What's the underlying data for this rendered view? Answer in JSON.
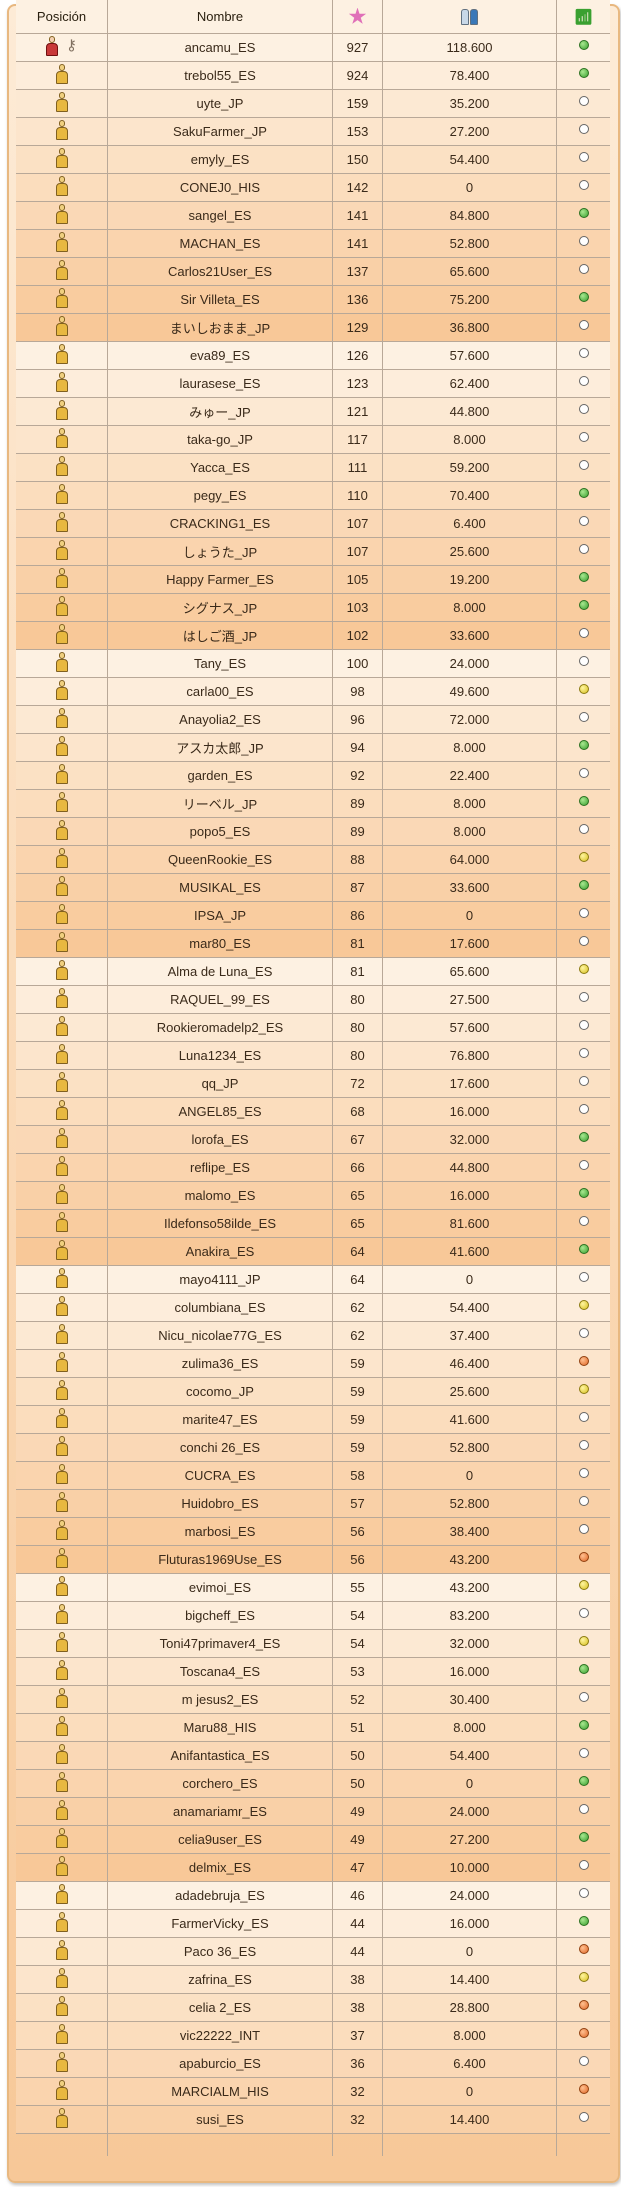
{
  "header": {
    "position": "Posición",
    "name": "Nombre",
    "star_icon": "star-icon",
    "neighbors_icon": "neighbors-icon",
    "online_icon": "wifi-icon"
  },
  "colors": {
    "green": "#3aa030",
    "yellow": "#d8c020",
    "orange": "#e06828",
    "none": "#ffffff"
  },
  "rows": [
    {
      "name": "ancamu_ES",
      "level": "927",
      "value": "118.600",
      "status": "green",
      "owner": true
    },
    {
      "name": "trebol55_ES",
      "level": "924",
      "value": "78.400",
      "status": "green"
    },
    {
      "name": "uyte_JP",
      "level": "159",
      "value": "35.200",
      "status": "none"
    },
    {
      "name": "SakuFarmer_JP",
      "level": "153",
      "value": "27.200",
      "status": "none"
    },
    {
      "name": "emyly_ES",
      "level": "150",
      "value": "54.400",
      "status": "none"
    },
    {
      "name": "CONEJ0_HIS",
      "level": "142",
      "value": "0",
      "status": "none"
    },
    {
      "name": "sangel_ES",
      "level": "141",
      "value": "84.800",
      "status": "green"
    },
    {
      "name": "MACHAN_ES",
      "level": "141",
      "value": "52.800",
      "status": "none"
    },
    {
      "name": "Carlos21User_ES",
      "level": "137",
      "value": "65.600",
      "status": "none"
    },
    {
      "name": "Sir Villeta_ES",
      "level": "136",
      "value": "75.200",
      "status": "green"
    },
    {
      "name": "まいしおまま_JP",
      "level": "129",
      "value": "36.800",
      "status": "none"
    },
    {
      "name": "eva89_ES",
      "level": "126",
      "value": "57.600",
      "status": "none"
    },
    {
      "name": "laurasese_ES",
      "level": "123",
      "value": "62.400",
      "status": "none"
    },
    {
      "name": "みゅー_JP",
      "level": "121",
      "value": "44.800",
      "status": "none"
    },
    {
      "name": "taka-go_JP",
      "level": "117",
      "value": "8.000",
      "status": "none"
    },
    {
      "name": "Yacca_ES",
      "level": "111",
      "value": "59.200",
      "status": "none"
    },
    {
      "name": "pegy_ES",
      "level": "110",
      "value": "70.400",
      "status": "green"
    },
    {
      "name": "CRACKING1_ES",
      "level": "107",
      "value": "6.400",
      "status": "none"
    },
    {
      "name": "しょうた_JP",
      "level": "107",
      "value": "25.600",
      "status": "none"
    },
    {
      "name": "Happy Farmer_ES",
      "level": "105",
      "value": "19.200",
      "status": "green"
    },
    {
      "name": "シグナス_JP",
      "level": "103",
      "value": "8.000",
      "status": "green"
    },
    {
      "name": "はしご酒_JP",
      "level": "102",
      "value": "33.600",
      "status": "none"
    },
    {
      "name": "Tany_ES",
      "level": "100",
      "value": "24.000",
      "status": "none"
    },
    {
      "name": "carla00_ES",
      "level": "98",
      "value": "49.600",
      "status": "yellow"
    },
    {
      "name": "Anayolia2_ES",
      "level": "96",
      "value": "72.000",
      "status": "none"
    },
    {
      "name": "アスカ太郎_JP",
      "level": "94",
      "value": "8.000",
      "status": "green"
    },
    {
      "name": "garden_ES",
      "level": "92",
      "value": "22.400",
      "status": "none"
    },
    {
      "name": "リーベル_JP",
      "level": "89",
      "value": "8.000",
      "status": "green"
    },
    {
      "name": "popo5_ES",
      "level": "89",
      "value": "8.000",
      "status": "none"
    },
    {
      "name": "QueenRookie_ES",
      "level": "88",
      "value": "64.000",
      "status": "yellow"
    },
    {
      "name": "MUSIKAL_ES",
      "level": "87",
      "value": "33.600",
      "status": "green"
    },
    {
      "name": "IPSA_JP",
      "level": "86",
      "value": "0",
      "status": "none"
    },
    {
      "name": "mar80_ES",
      "level": "81",
      "value": "17.600",
      "status": "none"
    },
    {
      "name": "Alma de Luna_ES",
      "level": "81",
      "value": "65.600",
      "status": "yellow"
    },
    {
      "name": "RAQUEL_99_ES",
      "level": "80",
      "value": "27.500",
      "status": "none"
    },
    {
      "name": "Rookieromadelp2_ES",
      "level": "80",
      "value": "57.600",
      "status": "none"
    },
    {
      "name": "Luna1234_ES",
      "level": "80",
      "value": "76.800",
      "status": "none"
    },
    {
      "name": "qq_JP",
      "level": "72",
      "value": "17.600",
      "status": "none"
    },
    {
      "name": "ANGEL85_ES",
      "level": "68",
      "value": "16.000",
      "status": "none"
    },
    {
      "name": "lorofa_ES",
      "level": "67",
      "value": "32.000",
      "status": "green"
    },
    {
      "name": "reflipe_ES",
      "level": "66",
      "value": "44.800",
      "status": "none"
    },
    {
      "name": "malomo_ES",
      "level": "65",
      "value": "16.000",
      "status": "green"
    },
    {
      "name": "Ildefonso58ilde_ES",
      "level": "65",
      "value": "81.600",
      "status": "none"
    },
    {
      "name": "Anakira_ES",
      "level": "64",
      "value": "41.600",
      "status": "green"
    },
    {
      "name": "mayo4111_JP",
      "level": "64",
      "value": "0",
      "status": "none"
    },
    {
      "name": "columbiana_ES",
      "level": "62",
      "value": "54.400",
      "status": "yellow"
    },
    {
      "name": "Nicu_nicolae77G_ES",
      "level": "62",
      "value": "37.400",
      "status": "none"
    },
    {
      "name": "zulima36_ES",
      "level": "59",
      "value": "46.400",
      "status": "orange"
    },
    {
      "name": "cocomo_JP",
      "level": "59",
      "value": "25.600",
      "status": "yellow"
    },
    {
      "name": "marite47_ES",
      "level": "59",
      "value": "41.600",
      "status": "none"
    },
    {
      "name": "conchi 26_ES",
      "level": "59",
      "value": "52.800",
      "status": "none"
    },
    {
      "name": "CUCRA_ES",
      "level": "58",
      "value": "0",
      "status": "none"
    },
    {
      "name": "Huidobro_ES",
      "level": "57",
      "value": "52.800",
      "status": "none"
    },
    {
      "name": "marbosi_ES",
      "level": "56",
      "value": "38.400",
      "status": "none"
    },
    {
      "name": "Fluturas1969Use_ES",
      "level": "56",
      "value": "43.200",
      "status": "orange"
    },
    {
      "name": "evimoi_ES",
      "level": "55",
      "value": "43.200",
      "status": "yellow"
    },
    {
      "name": "bigcheff_ES",
      "level": "54",
      "value": "83.200",
      "status": "none"
    },
    {
      "name": "Toni47primaver4_ES",
      "level": "54",
      "value": "32.000",
      "status": "yellow"
    },
    {
      "name": "Toscana4_ES",
      "level": "53",
      "value": "16.000",
      "status": "green"
    },
    {
      "name": "m jesus2_ES",
      "level": "52",
      "value": "30.400",
      "status": "none"
    },
    {
      "name": "Maru88_HIS",
      "level": "51",
      "value": "8.000",
      "status": "green"
    },
    {
      "name": "Anifantastica_ES",
      "level": "50",
      "value": "54.400",
      "status": "none"
    },
    {
      "name": "corchero_ES",
      "level": "50",
      "value": "0",
      "status": "green"
    },
    {
      "name": "anamariamr_ES",
      "level": "49",
      "value": "24.000",
      "status": "none"
    },
    {
      "name": "celia9user_ES",
      "level": "49",
      "value": "27.200",
      "status": "green"
    },
    {
      "name": "delmix_ES",
      "level": "47",
      "value": "10.000",
      "status": "none"
    },
    {
      "name": "adadebruja_ES",
      "level": "46",
      "value": "24.000",
      "status": "none"
    },
    {
      "name": "FarmerVicky_ES",
      "level": "44",
      "value": "16.000",
      "status": "green"
    },
    {
      "name": "Paco 36_ES",
      "level": "44",
      "value": "0",
      "status": "orange"
    },
    {
      "name": "zafrina_ES",
      "level": "38",
      "value": "14.400",
      "status": "yellow"
    },
    {
      "name": "celia 2_ES",
      "level": "38",
      "value": "28.800",
      "status": "orange"
    },
    {
      "name": "vic22222_INT",
      "level": "37",
      "value": "8.000",
      "status": "orange"
    },
    {
      "name": "apaburcio_ES",
      "level": "36",
      "value": "6.400",
      "status": "none"
    },
    {
      "name": "MARCIALM_HIS",
      "level": "32",
      "value": "0",
      "status": "orange"
    },
    {
      "name": "susi_ES",
      "level": "32",
      "value": "14.400",
      "status": "none"
    }
  ]
}
